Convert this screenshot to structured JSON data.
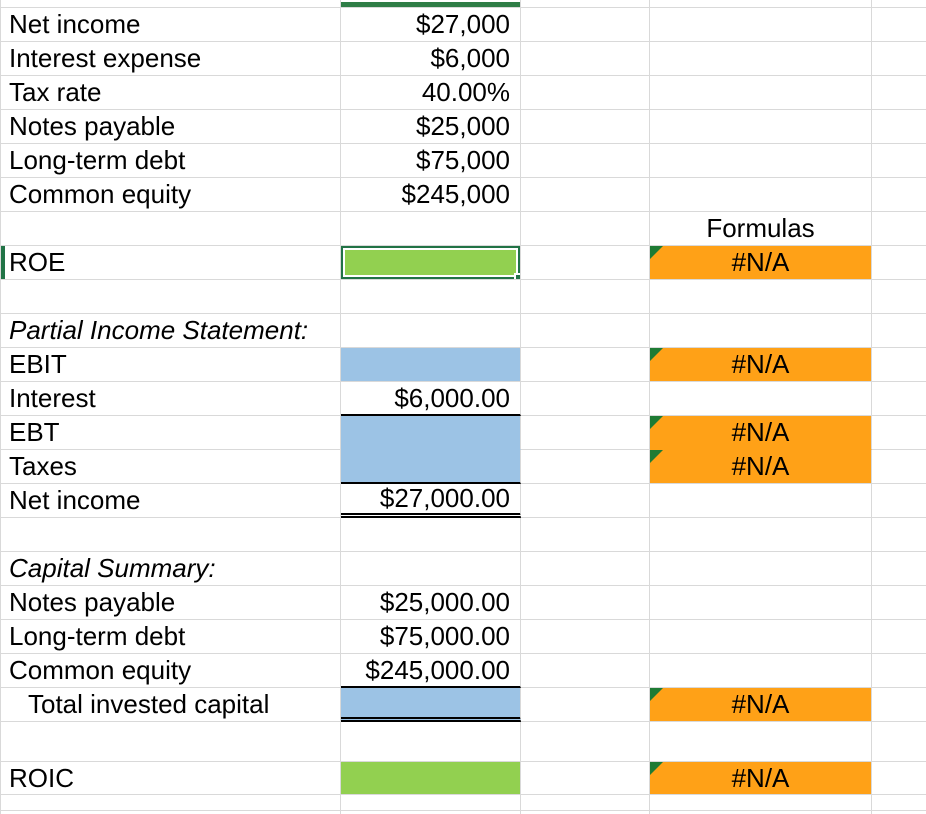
{
  "colors": {
    "green_fill": "#92D050",
    "blue_fill": "#9CC3E5",
    "orange_fill": "#FFA117",
    "selection_border_green": "#217346",
    "error_indicator_green": "#1E7B34",
    "gridline": "#D9D9D9"
  },
  "inputs": [
    {
      "label": "Net income",
      "value": "$27,000"
    },
    {
      "label": "Interest expense",
      "value": "$6,000"
    },
    {
      "label": "Tax rate",
      "value": "40.00%"
    },
    {
      "label": "Notes payable",
      "value": "$25,000"
    },
    {
      "label": "Long-term debt",
      "value": "$75,000"
    },
    {
      "label": "Common equity",
      "value": "$245,000"
    }
  ],
  "formulas": {
    "header": "Formulas"
  },
  "roe": {
    "label": "ROE",
    "result": "#N/A"
  },
  "income": {
    "title": "Partial Income Statement:",
    "rows": [
      {
        "label": "EBIT",
        "value": "",
        "result": "#N/A"
      },
      {
        "label": "Interest",
        "value": "$6,000.00"
      },
      {
        "label": "EBT",
        "value": "",
        "result": "#N/A"
      },
      {
        "label": "Taxes",
        "value": "",
        "result": "#N/A"
      },
      {
        "label": "Net income",
        "value": "$27,000.00"
      }
    ]
  },
  "capital": {
    "title": "Capital Summary:",
    "rows": [
      {
        "label": "Notes payable",
        "value": "$25,000.00"
      },
      {
        "label": "Long-term debt",
        "value": "$75,000.00"
      },
      {
        "label": "Common equity",
        "value": "$245,000.00"
      },
      {
        "label": "Total invested capital",
        "value": "",
        "result": "#N/A"
      }
    ]
  },
  "roic": {
    "label": "ROIC",
    "result": "#N/A"
  }
}
